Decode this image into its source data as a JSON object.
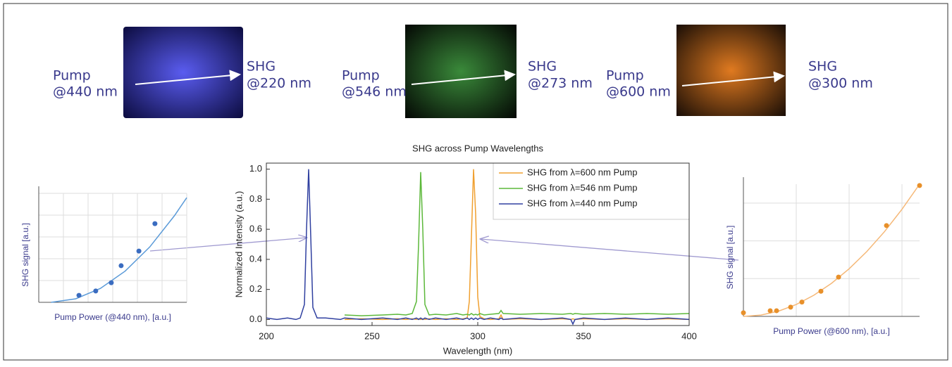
{
  "photos": [
    {
      "pump": [
        "Pump",
        "@440 nm"
      ],
      "shg": [
        "SHG",
        "@220 nm"
      ]
    },
    {
      "pump": [
        "Pump",
        "@546 nm"
      ],
      "shg": [
        "SHG",
        "@273 nm"
      ]
    },
    {
      "pump": [
        "Pump",
        "@600 nm"
      ],
      "shg": [
        "SHG",
        "@300 nm"
      ]
    }
  ],
  "chart_data": [
    {
      "type": "line",
      "title": "SHG across Pump Wavelengths",
      "xlabel": "Wavelength (nm)",
      "ylabel": "Normalized Intensity (a.u.)",
      "x": [
        200,
        205,
        210,
        214,
        216,
        218,
        219,
        220,
        221,
        222,
        224,
        228,
        235,
        237,
        245,
        255,
        262,
        266,
        269,
        271,
        272,
        273,
        274,
        275,
        277,
        280,
        285,
        290,
        293,
        295,
        296,
        297,
        298,
        299,
        300,
        301,
        303,
        306,
        310,
        311,
        312,
        320,
        330,
        340,
        344,
        345,
        346,
        350,
        360,
        370,
        380,
        390,
        400
      ],
      "series": [
        {
          "name": "SHG from λ=600 nm Pump",
          "color": "#f0a030",
          "values": [
            null,
            null,
            null,
            null,
            null,
            null,
            null,
            null,
            null,
            null,
            null,
            null,
            null,
            0.0,
            0.005,
            0.0,
            0.005,
            0.0,
            0.005,
            0.0,
            0.005,
            0.0,
            0.005,
            0.0,
            0.005,
            0.0,
            0.005,
            0.0,
            0.005,
            0.01,
            0.12,
            0.55,
            1.0,
            0.7,
            0.15,
            0.02,
            0.005,
            0.0,
            0.005,
            0.03,
            0.0,
            0.005,
            0.0,
            0.005,
            0.0,
            0.005,
            0.0,
            0.005,
            0.0,
            0.005,
            0.0,
            0.005,
            0.0
          ]
        },
        {
          "name": "SHG from λ=546 nm Pump",
          "color": "#5cb83a",
          "values": [
            null,
            null,
            null,
            null,
            null,
            null,
            null,
            null,
            null,
            null,
            null,
            null,
            null,
            0.03,
            0.025,
            0.03,
            0.035,
            0.03,
            0.04,
            0.12,
            0.5,
            0.98,
            0.6,
            0.1,
            0.03,
            0.035,
            0.03,
            0.04,
            0.03,
            0.035,
            0.03,
            0.04,
            0.03,
            0.035,
            0.03,
            0.04,
            0.03,
            0.035,
            0.04,
            0.06,
            0.04,
            0.035,
            0.04,
            0.035,
            0.04,
            0.035,
            0.04,
            0.035,
            0.04,
            0.035,
            0.04,
            0.035,
            0.04
          ]
        },
        {
          "name": "SHG from λ=440 nm Pump",
          "color": "#3040a0",
          "values": [
            0.01,
            0.0,
            0.01,
            0.0,
            0.01,
            0.1,
            0.6,
            1.0,
            0.55,
            0.08,
            0.01,
            0.01,
            0.0,
            0.01,
            0.0,
            0.01,
            0.0,
            0.01,
            0.0,
            0.01,
            0.0,
            0.01,
            0.0,
            0.01,
            0.0,
            0.01,
            0.0,
            0.01,
            0.0,
            0.01,
            0.0,
            0.01,
            0.0,
            0.01,
            0.0,
            0.01,
            0.0,
            0.01,
            0.0,
            0.01,
            0.0,
            0.01,
            0.0,
            0.01,
            0.0,
            -0.03,
            0.0,
            0.01,
            0.0,
            0.01,
            0.0,
            0.01,
            0.0
          ]
        }
      ],
      "xlim": [
        200,
        400
      ],
      "xticks": [
        200,
        250,
        300,
        350,
        400
      ],
      "ylim": [
        -0.04,
        1.04
      ],
      "yticks": [
        {
          "value": 0,
          "label": "0.0"
        },
        0.2,
        0.4,
        0.6,
        0.8,
        {
          "value": 1,
          "label": "1.0"
        }
      ],
      "legend": "upper right"
    },
    {
      "type": "scatter",
      "xlabel": "Pump Power (@440 nm), [a.u.]",
      "ylabel": "SHG signal [a.u.]",
      "points": {
        "color": "#3a6cc0",
        "x": [
          1.63,
          2.31,
          2.94,
          3.34,
          4.06,
          4.71
        ],
        "values": [
          0.32,
          0.52,
          0.9,
          1.68,
          2.35,
          3.61
        ]
      },
      "fit": {
        "color": "#5a9ad8",
        "x": [
          0.5,
          1.5,
          2.5,
          3.5,
          4.5,
          5.5,
          6
        ],
        "values": [
          0,
          0.16,
          0.64,
          1.43,
          2.54,
          3.97,
          4.8
        ]
      },
      "xlim": [
        0,
        6
      ],
      "ylim": [
        0,
        5
      ],
      "xticks": [
        0,
        1,
        2,
        3,
        4,
        5,
        6
      ],
      "yticks": [
        0,
        1,
        2,
        3,
        4,
        5
      ],
      "grid": true
    },
    {
      "type": "scatter",
      "xlabel": "Pump Power (@600 nm), [a.u.]",
      "ylabel": "SHG signal [a.u.]",
      "points": {
        "color": "#e8902a",
        "x": [
          0,
          1.52,
          1.88,
          2.68,
          3.32,
          4.4,
          5.4,
          8.12,
          10
        ],
        "values": [
          0.19,
          0.3,
          0.3,
          0.49,
          0.76,
          1.33,
          2.08,
          4.81,
          6.93
        ]
      },
      "fit": {
        "color": "#f5b878",
        "x": [
          0,
          1,
          2,
          3,
          4,
          5,
          6,
          7,
          8,
          9,
          10
        ],
        "values": [
          0,
          0.07,
          0.28,
          0.63,
          1.12,
          1.75,
          2.52,
          3.43,
          4.48,
          5.67,
          7.0
        ]
      },
      "xlim": [
        0,
        10
      ],
      "ylim": [
        0,
        7
      ],
      "xticks": [
        0,
        3,
        6,
        9
      ],
      "yticks": [
        0,
        2,
        4,
        6
      ],
      "grid": true
    }
  ]
}
